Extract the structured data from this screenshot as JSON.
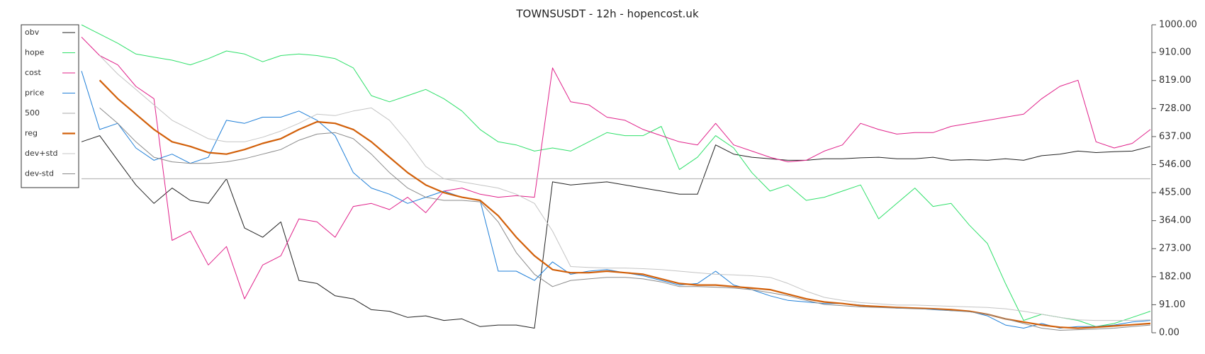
{
  "chart_data": {
    "type": "line",
    "title": "TOWNSUSDT - 12h - hopencost.uk",
    "ylim": [
      0,
      1000
    ],
    "yticks": [
      {
        "value": 0,
        "label": "0.00"
      },
      {
        "value": 91,
        "label": "91.00"
      },
      {
        "value": 182,
        "label": "182.00"
      },
      {
        "value": 273,
        "label": "273.00"
      },
      {
        "value": 364,
        "label": "364.00"
      },
      {
        "value": 455,
        "label": "455.00"
      },
      {
        "value": 546,
        "label": "546.00"
      },
      {
        "value": 637,
        "label": "637.00"
      },
      {
        "value": 728,
        "label": "728.00"
      },
      {
        "value": 819,
        "label": "819.00"
      },
      {
        "value": 910,
        "label": "910.00"
      },
      {
        "value": 1000,
        "label": "1000.00"
      }
    ],
    "legend": "upper-left",
    "series": [
      {
        "name": "obv",
        "color": "#222222",
        "width": 1,
        "values": [
          620,
          640,
          560,
          480,
          420,
          470,
          430,
          420,
          500,
          340,
          310,
          360,
          170,
          160,
          120,
          110,
          75,
          70,
          50,
          55,
          40,
          45,
          20,
          25,
          25,
          15,
          490,
          480,
          485,
          490,
          480,
          470,
          460,
          450,
          450,
          610,
          580,
          570,
          565,
          560,
          560,
          565,
          565,
          568,
          570,
          565,
          565,
          570,
          560,
          562,
          560,
          565,
          560,
          575,
          580,
          590,
          585,
          588,
          590,
          605
        ]
      },
      {
        "name": "hope",
        "color": "#2fe06a",
        "width": 1,
        "values": [
          1000,
          970,
          940,
          905,
          895,
          885,
          870,
          890,
          915,
          905,
          880,
          900,
          905,
          900,
          890,
          860,
          770,
          750,
          770,
          790,
          760,
          720,
          660,
          620,
          610,
          590,
          600,
          590,
          620,
          650,
          640,
          640,
          670,
          530,
          570,
          640,
          600,
          520,
          460,
          480,
          430,
          440,
          460,
          480,
          370,
          420,
          470,
          410,
          420,
          350,
          290,
          160,
          40,
          60,
          50,
          40,
          20,
          30,
          50,
          70
        ]
      },
      {
        "name": "cost",
        "color": "#e0218a",
        "width": 1,
        "values": [
          960,
          900,
          870,
          800,
          760,
          300,
          330,
          220,
          280,
          110,
          220,
          250,
          370,
          360,
          310,
          410,
          420,
          400,
          440,
          390,
          460,
          470,
          450,
          440,
          445,
          440,
          860,
          750,
          740,
          700,
          690,
          660,
          640,
          620,
          610,
          680,
          610,
          590,
          570,
          555,
          560,
          590,
          610,
          680,
          660,
          645,
          650,
          650,
          670,
          680,
          690,
          700,
          710,
          760,
          800,
          820,
          620,
          600,
          615,
          660
        ]
      },
      {
        "name": "price",
        "color": "#1f7fd8",
        "width": 1,
        "values": [
          850,
          660,
          680,
          600,
          560,
          580,
          550,
          570,
          690,
          680,
          700,
          700,
          720,
          690,
          640,
          520,
          470,
          450,
          420,
          440,
          460,
          440,
          430,
          200,
          200,
          170,
          230,
          190,
          200,
          205,
          195,
          185,
          170,
          155,
          160,
          200,
          155,
          140,
          120,
          105,
          100,
          95,
          95,
          90,
          85,
          80,
          80,
          75,
          72,
          70,
          55,
          25,
          15,
          30,
          15,
          20,
          20,
          25,
          35,
          40
        ]
      },
      {
        "name": "500",
        "color": "#bbbbbb",
        "width": 1.2,
        "values": [
          500,
          500,
          500,
          500,
          500,
          500,
          500,
          500,
          500,
          500,
          500,
          500,
          500,
          500,
          500,
          500,
          500,
          500,
          500,
          500,
          500,
          500,
          500,
          500,
          500,
          500,
          500,
          500,
          500,
          500,
          500,
          500,
          500,
          500,
          500,
          500,
          500,
          500,
          500,
          500,
          500,
          500,
          500,
          500,
          500,
          500,
          500,
          500,
          500,
          500,
          500,
          500,
          500,
          500,
          500,
          500,
          500,
          500,
          500,
          500
        ]
      },
      {
        "name": "reg",
        "color": "#d2600a",
        "width": 2.2,
        "values": [
          null,
          820,
          760,
          710,
          660,
          620,
          605,
          585,
          580,
          595,
          615,
          630,
          660,
          685,
          680,
          660,
          620,
          570,
          520,
          480,
          455,
          440,
          430,
          380,
          310,
          250,
          205,
          195,
          195,
          200,
          195,
          190,
          175,
          160,
          155,
          155,
          150,
          145,
          140,
          125,
          110,
          100,
          95,
          88,
          85,
          82,
          80,
          78,
          75,
          70,
          60,
          45,
          35,
          25,
          18,
          15,
          18,
          22,
          26,
          30
        ]
      },
      {
        "name": "dev+std",
        "color": "#c4c4c4",
        "width": 1,
        "values": [
          null,
          900,
          840,
          790,
          740,
          690,
          660,
          630,
          620,
          620,
          635,
          655,
          680,
          710,
          705,
          720,
          730,
          690,
          620,
          540,
          500,
          490,
          480,
          470,
          450,
          420,
          330,
          215,
          212,
          210,
          210,
          208,
          205,
          200,
          195,
          190,
          188,
          185,
          180,
          160,
          135,
          115,
          105,
          98,
          94,
          90,
          90,
          88,
          86,
          84,
          82,
          78,
          70,
          60,
          50,
          42,
          40,
          40,
          40,
          42
        ]
      },
      {
        "name": "dev-std",
        "color": "#8a8a8a",
        "width": 1,
        "values": [
          null,
          730,
          680,
          620,
          570,
          555,
          550,
          550,
          555,
          565,
          580,
          595,
          625,
          645,
          650,
          630,
          580,
          520,
          470,
          440,
          430,
          430,
          425,
          360,
          260,
          190,
          150,
          170,
          175,
          180,
          180,
          175,
          165,
          150,
          150,
          148,
          145,
          140,
          130,
          120,
          105,
          92,
          88,
          84,
          82,
          80,
          78,
          76,
          72,
          68,
          60,
          45,
          30,
          15,
          8,
          10,
          12,
          15,
          20,
          25
        ]
      }
    ]
  }
}
